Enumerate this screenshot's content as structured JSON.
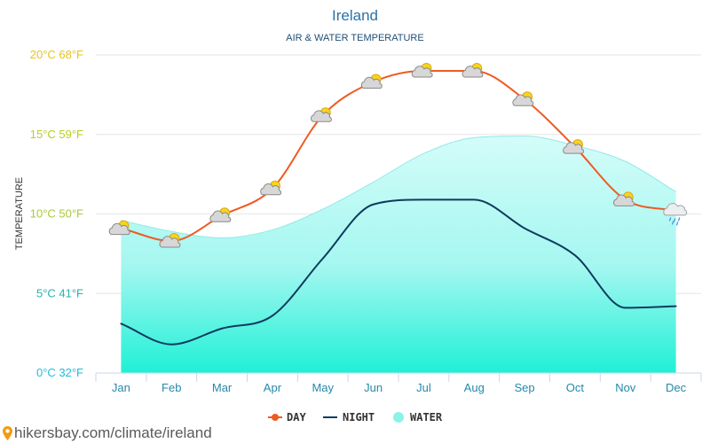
{
  "chart_data": {
    "type": "line",
    "title": "Ireland",
    "subtitle": "AIR & WATER TEMPERATURE",
    "ylabel": "TEMPERATURE",
    "ylim": [
      0,
      20
    ],
    "grid": true,
    "legend_position": "bottom",
    "categories": [
      "Jan",
      "Feb",
      "Mar",
      "Apr",
      "May",
      "Jun",
      "Jul",
      "Aug",
      "Sep",
      "Oct",
      "Nov",
      "Dec"
    ],
    "y_ticks": [
      {
        "value": 0,
        "label": "0°C 32°F",
        "color": "#22bcd9"
      },
      {
        "value": 5,
        "label": "5°C 41°F",
        "color": "#27b2ae"
      },
      {
        "value": 10,
        "label": "10°C 50°F",
        "color": "#a9c83a"
      },
      {
        "value": 15,
        "label": "15°C 59°F",
        "color": "#b9cd27"
      },
      {
        "value": 20,
        "label": "20°C 68°F",
        "color": "#e7c41f"
      }
    ],
    "series": [
      {
        "name": "DAY",
        "type": "line",
        "color": "#ef5a22",
        "values": [
          9.1,
          8.3,
          9.9,
          11.6,
          16.2,
          18.3,
          19,
          19,
          17.2,
          14.2,
          10.9,
          10.2
        ],
        "icons": [
          "partly-cloudy",
          "partly-cloudy",
          "partly-cloudy",
          "partly-cloudy",
          "partly-cloudy",
          "partly-cloudy",
          "partly-cloudy",
          "partly-cloudy",
          "partly-cloudy",
          "partly-cloudy",
          "partly-cloudy",
          "rain"
        ]
      },
      {
        "name": "NIGHT",
        "type": "line",
        "color": "#0f3b5f",
        "values": [
          3.1,
          1.8,
          2.8,
          3.6,
          7.2,
          10.6,
          10.9,
          10.9,
          9.1,
          7.4,
          4.1,
          4.2
        ]
      },
      {
        "name": "WATER",
        "type": "area",
        "color": "#8cf2e8",
        "values": [
          9.6,
          8.9,
          8.5,
          9.0,
          10.3,
          12.0,
          13.8,
          14.8,
          14.9,
          14.3,
          13.3,
          11.4
        ]
      }
    ]
  },
  "footer": {
    "link_text": "hikersbay.com/climate/ireland",
    "icon": "location-pin"
  }
}
